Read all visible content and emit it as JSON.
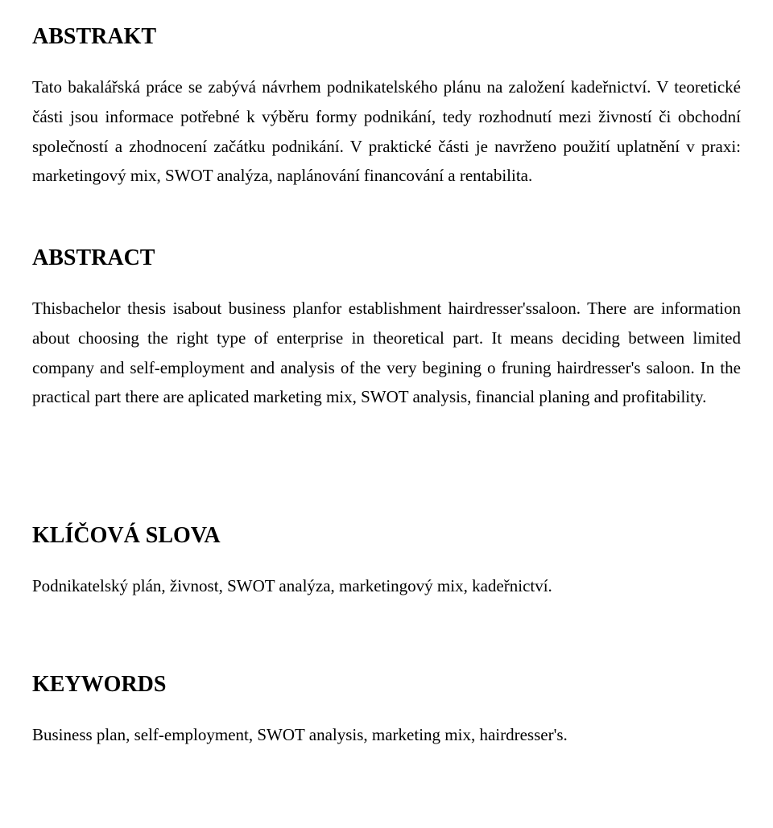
{
  "typography": {
    "font_family": "Times New Roman",
    "heading_fontsize_pt": 21,
    "heading_weight": "bold",
    "body_fontsize_pt": 16,
    "body_lineheight": 1.75,
    "text_color": "#000000",
    "background_color": "#ffffff",
    "alignment_body": "justify"
  },
  "sections": {
    "abstrakt": {
      "heading": "ABSTRAKT",
      "body": "Tato bakalářská práce se zabývá návrhem podnikatelského plánu na založení kadeřnictví. V teoretické části jsou informace potřebné k výběru formy podnikání, tedy rozhodnutí mezi živností či obchodní společností a zhodnocení začátku podnikání. V praktické části je navrženo použití uplatnění v praxi: marketingový mix, SWOT analýza, naplánování financování a rentabilita."
    },
    "abstract": {
      "heading": "ABSTRACT",
      "body": "Thisbachelor thesis isabout business planfor establishment hairdresser'ssaloon. There are information about choosing the right type of enterprise in theoretical part. It means deciding between limited company and self-employment and analysis of the very begining o fruning hairdresser's saloon. In the practical part there are aplicated marketing mix, SWOT analysis, financial planing and profitability."
    },
    "klicova": {
      "heading": "KLÍČOVÁ SLOVA",
      "body": "Podnikatelský plán, živnost, SWOT analýza, marketingový mix, kadeřnictví."
    },
    "keywords": {
      "heading": "KEYWORDS",
      "body": "Business plan, self-employment, SWOT analysis, marketing mix, hairdresser's."
    }
  }
}
